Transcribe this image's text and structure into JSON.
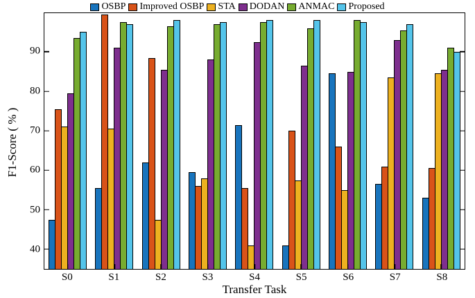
{
  "chart_data": {
    "type": "bar",
    "title": "",
    "xlabel": "Transfer Task",
    "ylabel": "F1-Score ( % )",
    "categories": [
      "S0",
      "S1",
      "S2",
      "S3",
      "S4",
      "S5",
      "S6",
      "S7",
      "S8"
    ],
    "series": [
      {
        "name": "OSBP",
        "color": "#1874bd",
        "values": [
          47.5,
          55.5,
          62,
          59.5,
          71.5,
          41,
          84.5,
          56.5,
          53
        ]
      },
      {
        "name": "Improved OSBP",
        "color": "#d95319",
        "values": [
          75.5,
          99.5,
          88.5,
          56,
          55.5,
          70,
          66,
          61,
          60.5
        ]
      },
      {
        "name": "STA",
        "color": "#edb120",
        "values": [
          71,
          70.5,
          47.5,
          58,
          41,
          57.5,
          55,
          83.5,
          84.5
        ]
      },
      {
        "name": "DODAN",
        "color": "#7e2f8e",
        "values": [
          79.5,
          91,
          85.5,
          88,
          92.5,
          86.5,
          85,
          93,
          85.5
        ]
      },
      {
        "name": "ANMAC",
        "color": "#77ac30",
        "values": [
          93.5,
          97.5,
          96.5,
          97,
          97.5,
          96,
          98,
          95.5,
          91
        ]
      },
      {
        "name": "Proposed",
        "color": "#54c4ea",
        "values": [
          95,
          97,
          98,
          97.5,
          98,
          98,
          97.5,
          97,
          90
        ]
      }
    ],
    "ylim": [
      35,
      99.8
    ],
    "yticks": [
      40,
      50,
      60,
      70,
      80,
      90
    ],
    "legend_position": "top",
    "grid": false,
    "bar_edge_color": "#000000"
  }
}
